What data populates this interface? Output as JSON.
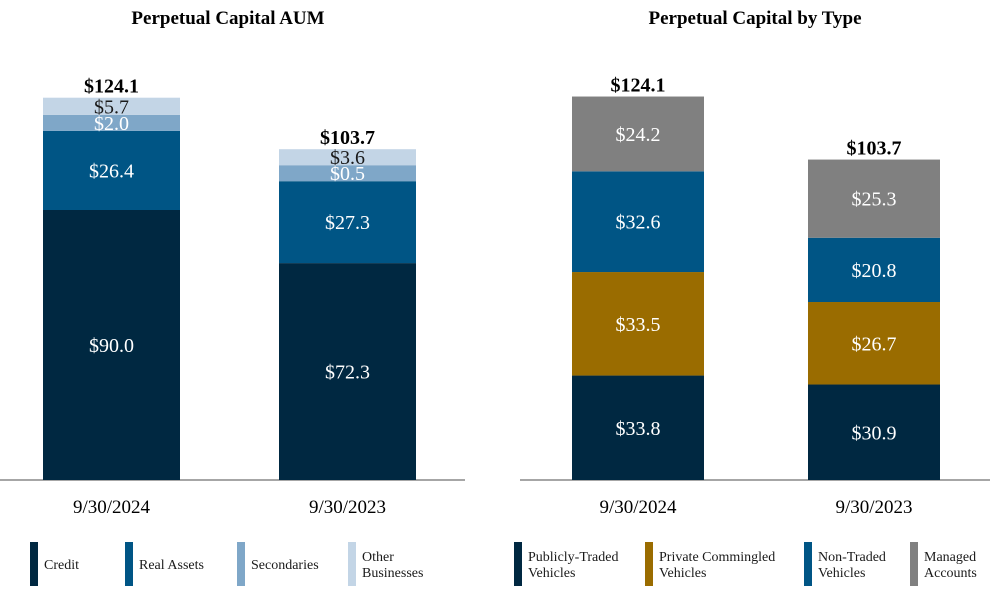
{
  "chart_data": [
    {
      "type": "bar",
      "stacked": true,
      "title": "Perpetual Capital AUM",
      "categories": [
        "9/30/2024",
        "9/30/2023"
      ],
      "totals": [
        "$124.1",
        "$103.7"
      ],
      "series": [
        {
          "name": "Credit",
          "values": [
            90.0,
            72.3
          ],
          "color": "#002841",
          "label_color": "#ffffff"
        },
        {
          "name": "Real Assets",
          "values": [
            26.4,
            27.3
          ],
          "color": "#005585",
          "label_color": "#ffffff"
        },
        {
          "name": "Secondaries",
          "values": [
            2.0,
            0.5
          ],
          "color": "#7fa7c8",
          "label_color": "#ffffff"
        },
        {
          "name": "Other Businesses",
          "values": [
            5.7,
            3.6
          ],
          "color": "#c3d5e6",
          "label_color": "#1a1a1a"
        }
      ],
      "legend_position": "bottom",
      "grid": false
    },
    {
      "type": "bar",
      "stacked": true,
      "title": "Perpetual Capital by Type",
      "categories": [
        "9/30/2024",
        "9/30/2023"
      ],
      "totals": [
        "$124.1",
        "$103.7"
      ],
      "series": [
        {
          "name": "Publicly-Traded Vehicles",
          "values": [
            33.8,
            30.9
          ],
          "color": "#002841",
          "label_color": "#ffffff"
        },
        {
          "name": "Private Commingled Vehicles",
          "values": [
            33.5,
            26.7
          ],
          "color": "#9a6c00",
          "label_color": "#ffffff"
        },
        {
          "name": "Non-Traded Vehicles",
          "values": [
            32.6,
            20.8
          ],
          "color": "#005585",
          "label_color": "#ffffff"
        },
        {
          "name": "Managed Accounts",
          "values": [
            24.2,
            25.3
          ],
          "color": "#808080",
          "label_color": "#ffffff"
        }
      ],
      "legend_position": "bottom",
      "grid": false
    }
  ]
}
